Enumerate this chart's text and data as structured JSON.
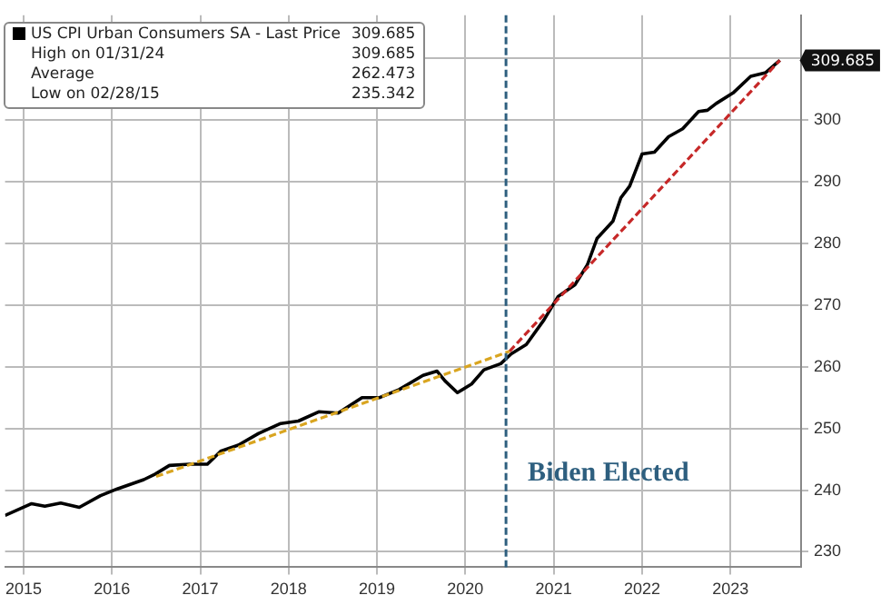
{
  "chart_data": {
    "type": "line",
    "x": [
      2015.29,
      2015.59,
      2015.74,
      2015.92,
      2016.13,
      2016.37,
      2016.56,
      2016.86,
      2016.99,
      2017.15,
      2017.38,
      2017.58,
      2017.73,
      2017.93,
      2018.16,
      2018.41,
      2018.61,
      2018.84,
      2019.06,
      2019.33,
      2019.53,
      2019.75,
      2020.02,
      2020.18,
      2020.27,
      2020.41,
      2020.57,
      2020.71,
      2020.9,
      2021.02,
      2021.19,
      2021.39,
      2021.55,
      2021.74,
      2021.88,
      2021.99,
      2022.17,
      2022.26,
      2022.36,
      2022.5,
      2022.64,
      2022.8,
      2022.96,
      2023.14,
      2023.24,
      2023.34,
      2023.53,
      2023.73,
      2023.9,
      2024.06
    ],
    "series": [
      {
        "name": "US CPI Urban Consumers SA - Last Price",
        "color": "#000000",
        "line_style": "solid",
        "values": [
          235.9,
          237.8,
          237.4,
          237.9,
          237.2,
          239.1,
          240.2,
          241.7,
          242.6,
          244.0,
          244.2,
          244.2,
          246.3,
          247.3,
          249.2,
          250.8,
          251.2,
          252.7,
          252.5,
          255.0,
          255.0,
          256.3,
          258.6,
          259.3,
          257.7,
          255.8,
          257.2,
          259.5,
          260.5,
          262.1,
          263.6,
          267.6,
          271.4,
          273.3,
          276.5,
          280.8,
          283.6,
          287.4,
          289.3,
          294.5,
          294.8,
          297.3,
          298.6,
          301.4,
          301.6,
          302.7,
          304.4,
          307.1,
          307.7,
          309.685
        ]
      },
      {
        "type": "line",
        "x": [
          2017.0,
          2021.0
        ],
        "color": "#d9a520",
        "line_style": "dashed",
        "values": [
          242.2,
          262.5
        ]
      },
      {
        "type": "line",
        "x": [
          2021.0,
          2024.06
        ],
        "color": "#c62828",
        "line_style": "dashed",
        "values": [
          262.5,
          309.7
        ]
      }
    ],
    "xlim": [
      2015.29,
      2024.3
    ],
    "xticks": [
      {
        "value": 2015.5,
        "label": "2015"
      },
      {
        "value": 2016.5,
        "label": "2016"
      },
      {
        "value": 2017.5,
        "label": "2017"
      },
      {
        "value": 2018.5,
        "label": "2018"
      },
      {
        "value": 2019.5,
        "label": "2019"
      },
      {
        "value": 2020.5,
        "label": "2020"
      },
      {
        "value": 2021.5,
        "label": "2021"
      },
      {
        "value": 2022.5,
        "label": "2022"
      },
      {
        "value": 2023.5,
        "label": "2023"
      }
    ],
    "ylim": [
      227.5,
      317
    ],
    "yticks": [
      230,
      240,
      250,
      260,
      270,
      280,
      290,
      300,
      {
        "value": 310,
        "label": null
      }
    ],
    "grid": true,
    "legend": "top left",
    "marker": "none",
    "ref_lines": [
      {
        "axis": "x",
        "value": 2020.96,
        "label": "Biden Elected",
        "color": "#2e5f7f",
        "line_style": "dashed"
      }
    ],
    "annotations": [
      "High on 01/31/24 309.685",
      "Average 262.473",
      "Low on 02/28/15 235.342",
      {
        "text": "309.685",
        "x": 2024.06,
        "y": 309.685
      }
    ]
  }
}
